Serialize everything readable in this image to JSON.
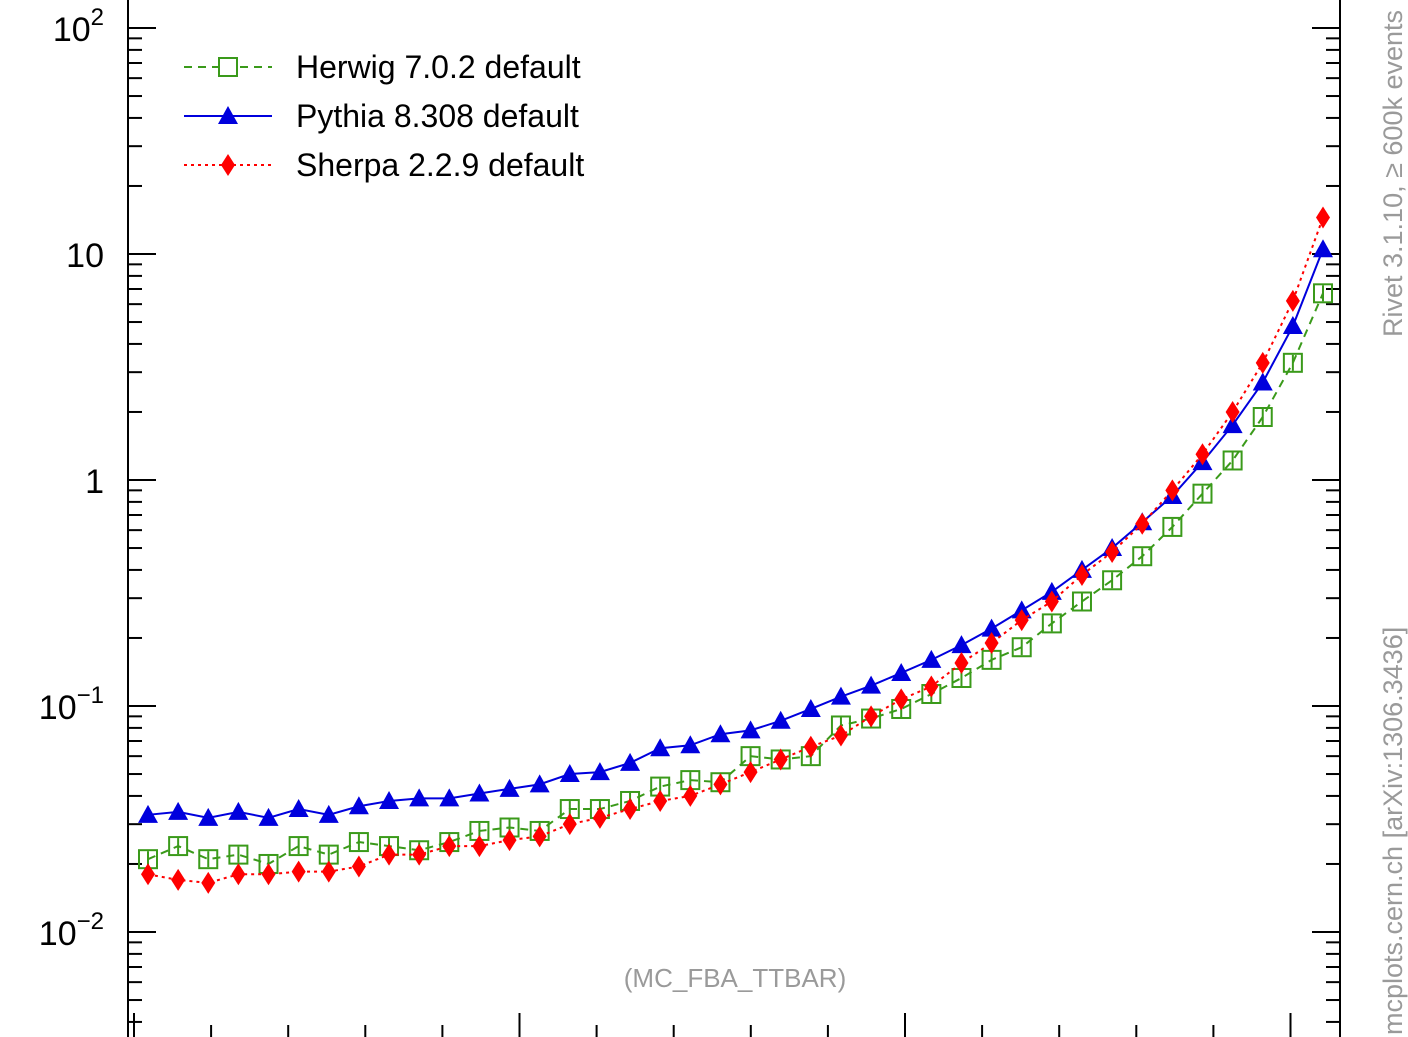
{
  "chart_data": {
    "type": "line",
    "title": "",
    "xlabel": "",
    "ylabel": "",
    "y_scale": "log",
    "ylim": [
      0.004,
      130
    ],
    "xlim": [
      0,
      40
    ],
    "grid": false,
    "legend_position": "top-left",
    "y_ticks": [
      {
        "value": 100,
        "base": "10",
        "exp": "2"
      },
      {
        "value": 10,
        "base": "10",
        "exp": ""
      },
      {
        "value": 1,
        "base": "1",
        "exp": ""
      },
      {
        "value": 0.1,
        "base": "10",
        "exp": "−1"
      },
      {
        "value": 0.01,
        "base": "10",
        "exp": "−2"
      }
    ],
    "x": [
      0.5,
      1.5,
      2.5,
      3.5,
      4.5,
      5.5,
      6.5,
      7.5,
      8.5,
      9.5,
      10.5,
      11.5,
      12.5,
      13.5,
      14.5,
      15.5,
      16.5,
      17.5,
      18.5,
      19.5,
      20.5,
      21.5,
      22.5,
      23.5,
      24.5,
      25.5,
      26.5,
      27.5,
      28.5,
      29.5,
      30.5,
      31.5,
      32.5,
      33.5,
      34.5,
      35.5,
      36.5,
      37.5,
      38.5,
      39.5
    ],
    "series": [
      {
        "name": "Herwig 7.0.2 default",
        "color": "#3a9a1a",
        "line_style": "dashed",
        "marker": "open-square",
        "values": [
          0.021,
          0.024,
          0.021,
          0.022,
          0.02,
          0.024,
          0.022,
          0.025,
          0.024,
          0.023,
          0.025,
          0.028,
          0.029,
          0.028,
          0.035,
          0.035,
          0.038,
          0.044,
          0.047,
          0.046,
          0.06,
          0.058,
          0.06,
          0.082,
          0.088,
          0.097,
          0.113,
          0.133,
          0.16,
          0.182,
          0.232,
          0.29,
          0.36,
          0.46,
          0.62,
          0.87,
          1.22,
          1.9,
          3.3,
          6.7
        ]
      },
      {
        "name": "Pythia 8.308 default",
        "color": "#0000dd",
        "line_style": "solid",
        "marker": "filled-triangle",
        "values": [
          0.033,
          0.034,
          0.032,
          0.034,
          0.032,
          0.035,
          0.033,
          0.036,
          0.038,
          0.039,
          0.039,
          0.041,
          0.043,
          0.045,
          0.05,
          0.051,
          0.056,
          0.065,
          0.067,
          0.075,
          0.078,
          0.086,
          0.097,
          0.11,
          0.123,
          0.14,
          0.16,
          0.186,
          0.22,
          0.265,
          0.32,
          0.4,
          0.5,
          0.65,
          0.85,
          1.2,
          1.75,
          2.7,
          4.8,
          10.5
        ]
      },
      {
        "name": "Sherpa 2.2.9 default",
        "color": "#ff0000",
        "line_style": "dotted",
        "marker": "filled-diamond",
        "values": [
          0.018,
          0.017,
          0.0165,
          0.018,
          0.018,
          0.0185,
          0.0185,
          0.0195,
          0.022,
          0.022,
          0.024,
          0.024,
          0.0255,
          0.0265,
          0.03,
          0.032,
          0.035,
          0.038,
          0.04,
          0.045,
          0.051,
          0.058,
          0.066,
          0.074,
          0.09,
          0.107,
          0.122,
          0.155,
          0.19,
          0.24,
          0.29,
          0.38,
          0.48,
          0.64,
          0.9,
          1.3,
          2.0,
          3.3,
          6.2,
          14.5
        ]
      }
    ],
    "analysis_label": "(MC_FBA_TTBAR)",
    "side_label_1": "mcplots.cern.ch [arXiv:1306.3436]",
    "side_label_2": "Rivet 3.1.10, ≥ 600k events"
  }
}
